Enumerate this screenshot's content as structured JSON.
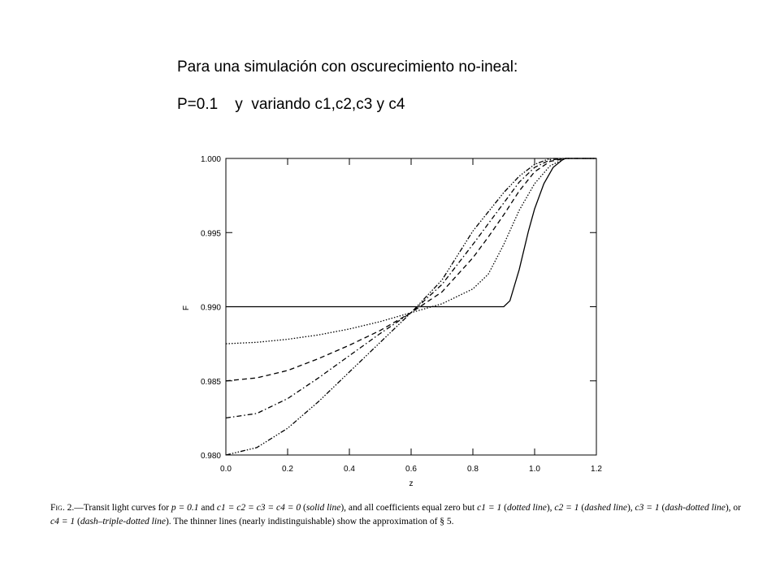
{
  "slide": {
    "heading_line1": "Para una simulación con oscurecimiento no-ineal:",
    "heading_line2": "P=0.1    y  variando c1,c2,c3 y c4"
  },
  "caption": {
    "fig_label": "Fig. 2.",
    "part1": "—Transit light curves for ",
    "p_eq": "p = 0.1",
    "and": " and ",
    "c_eq": "c1 = c2 = c3 = c4 = 0",
    "solid": "solid line",
    "part2": "), and all coefficients equal zero but ",
    "c1": "c1 = 1",
    "dotted": "dotted line",
    "c2": "c2 = 1",
    "dashed": "dashed line",
    "c3": "c3 = 1",
    "dashdotted": "dash-dotted line",
    "or": ", or ",
    "c4": "c4 = 1",
    "dashtriple": "dash–triple-dotted line",
    "part3": "). The thinner lines (nearly indistinguishable) show the approximation of § 5."
  },
  "chart_data": {
    "type": "line",
    "title": "",
    "xlabel": "z",
    "ylabel": "F",
    "xlim": [
      0.0,
      1.2
    ],
    "ylim": [
      0.98,
      1.0
    ],
    "xticks": [
      "0.0",
      "0.2",
      "0.4",
      "0.6",
      "0.8",
      "1.0",
      "1.2"
    ],
    "yticks": [
      "0.980",
      "0.985",
      "0.990",
      "0.995",
      "1.000"
    ],
    "grid": false,
    "legend": "none",
    "series": [
      {
        "style": "solid",
        "x": [
          0.0,
          0.3,
          0.6,
          0.88,
          0.9,
          0.92,
          0.95,
          0.98,
          1.0,
          1.03,
          1.06,
          1.09,
          1.1,
          1.15,
          1.2
        ],
        "y": [
          0.99,
          0.99,
          0.99,
          0.99,
          0.99,
          0.9904,
          0.9925,
          0.9951,
          0.9966,
          0.9983,
          0.9994,
          0.9999,
          1.0,
          1.0,
          1.0
        ]
      },
      {
        "style": "dotted",
        "x": [
          0.0,
          0.1,
          0.2,
          0.3,
          0.4,
          0.5,
          0.6,
          0.7,
          0.8,
          0.85,
          0.9,
          0.95,
          1.0,
          1.05,
          1.1,
          1.15,
          1.2
        ],
        "y": [
          0.9875,
          0.9876,
          0.9878,
          0.9881,
          0.9885,
          0.989,
          0.9896,
          0.9902,
          0.9912,
          0.9922,
          0.9942,
          0.9965,
          0.9983,
          0.9995,
          1.0,
          1.0,
          1.0
        ]
      },
      {
        "style": "dashed",
        "x": [
          0.0,
          0.1,
          0.2,
          0.3,
          0.4,
          0.5,
          0.6,
          0.7,
          0.8,
          0.85,
          0.9,
          0.95,
          1.0,
          1.05,
          1.1,
          1.15,
          1.2
        ],
        "y": [
          0.985,
          0.9852,
          0.9857,
          0.9865,
          0.9874,
          0.9884,
          0.9896,
          0.991,
          0.9933,
          0.9947,
          0.9962,
          0.9978,
          0.9991,
          0.9998,
          1.0,
          1.0,
          1.0
        ]
      },
      {
        "style": "dash-dotted",
        "x": [
          0.0,
          0.1,
          0.2,
          0.3,
          0.4,
          0.5,
          0.6,
          0.7,
          0.8,
          0.85,
          0.9,
          0.95,
          1.0,
          1.05,
          1.1,
          1.15,
          1.2
        ],
        "y": [
          0.9825,
          0.9828,
          0.9838,
          0.9852,
          0.9867,
          0.9882,
          0.9896,
          0.9915,
          0.9942,
          0.9956,
          0.997,
          0.9984,
          0.9994,
          0.9999,
          1.0,
          1.0,
          1.0
        ]
      },
      {
        "style": "dash-triple-dotted",
        "x": [
          0.0,
          0.1,
          0.2,
          0.3,
          0.4,
          0.5,
          0.6,
          0.7,
          0.8,
          0.85,
          0.9,
          0.95,
          1.0,
          1.05,
          1.1,
          1.15,
          1.2
        ],
        "y": [
          0.98,
          0.9805,
          0.9818,
          0.9836,
          0.9856,
          0.9876,
          0.9896,
          0.9918,
          0.9951,
          0.9964,
          0.9977,
          0.9988,
          0.9996,
          1.0,
          1.0,
          1.0,
          1.0
        ]
      }
    ]
  }
}
